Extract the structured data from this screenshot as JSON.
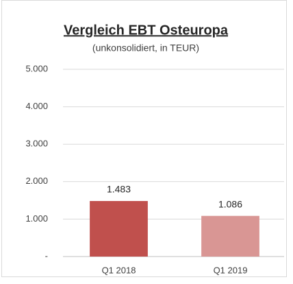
{
  "chart_data": {
    "type": "bar",
    "title": "Vergleich EBT Osteuropa",
    "subtitle": "(unkonsolidiert, in TEUR)",
    "categories": [
      "Q1 2018",
      "Q1 2019"
    ],
    "values": [
      1483,
      1086
    ],
    "value_labels": [
      "1.483",
      "1.086"
    ],
    "colors": [
      "#c0504d",
      "#d99694"
    ],
    "ylim": [
      0,
      5000
    ],
    "yticks": [
      {
        "value": 0,
        "label": "-"
      },
      {
        "value": 1000,
        "label": "1.000"
      },
      {
        "value": 2000,
        "label": "2.000"
      },
      {
        "value": 3000,
        "label": "3.000"
      },
      {
        "value": 4000,
        "label": "4.000"
      },
      {
        "value": 5000,
        "label": "5.000"
      }
    ],
    "grid": true
  }
}
